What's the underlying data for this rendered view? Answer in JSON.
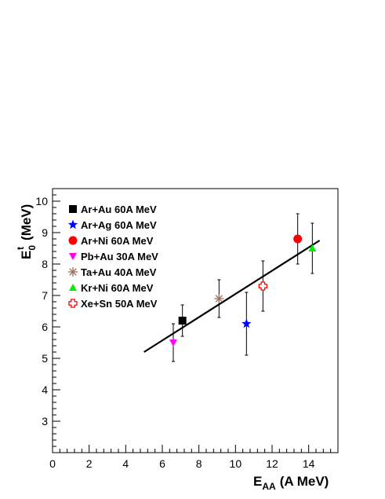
{
  "chart_data": {
    "type": "scatter",
    "title": "",
    "xlabel": {
      "main": "E",
      "sub": "AA",
      "unit": "(A MeV)"
    },
    "ylabel": {
      "main": "E",
      "sub": "0",
      "sup": "t",
      "unit": "(MeV)"
    },
    "xlim": [
      0,
      15.6
    ],
    "ylim": [
      2,
      10.4
    ],
    "x_ticks": [
      0,
      2,
      4,
      6,
      8,
      10,
      12,
      14
    ],
    "y_ticks": [
      3,
      4,
      5,
      6,
      7,
      8,
      9,
      10
    ],
    "grid": false,
    "legend_position": "top-left",
    "series": [
      {
        "name": "Ar+Au 60A MeV",
        "marker": "square",
        "color": "#000000",
        "x": 7.1,
        "y": 6.2,
        "err_low": 0.5,
        "err_high": 0.5
      },
      {
        "name": "Ar+Ag 60A MeV",
        "marker": "star",
        "color": "#0000ff",
        "x": 10.6,
        "y": 6.1,
        "err_low": 1.0,
        "err_high": 1.0
      },
      {
        "name": "Ar+Ni  60A MeV",
        "marker": "circle",
        "color": "#ff0000",
        "x": 13.4,
        "y": 8.8,
        "err_low": 0.8,
        "err_high": 0.8
      },
      {
        "name": "Pb+Au 30A MeV",
        "marker": "triangle-down",
        "color": "#ff00ff",
        "x": 6.6,
        "y": 5.5,
        "err_low": 0.6,
        "err_high": 0.6
      },
      {
        "name": "Ta+Au 40A MeV",
        "marker": "asterisk",
        "color": "#a07060",
        "x": 9.1,
        "y": 6.9,
        "err_low": 0.6,
        "err_high": 0.6
      },
      {
        "name": "Kr+Ni  60A MeV",
        "marker": "triangle-up",
        "color": "#00ee00",
        "x": 14.2,
        "y": 8.5,
        "err_low": 0.8,
        "err_high": 0.8
      },
      {
        "name": "Xe+Sn 50A MeV",
        "marker": "open-cross",
        "color": "#ff0000",
        "x": 11.5,
        "y": 7.3,
        "err_low": 0.8,
        "err_high": 0.8
      }
    ],
    "fit_line": {
      "x": [
        5.0,
        14.6
      ],
      "y": [
        5.2,
        8.75
      ]
    }
  }
}
